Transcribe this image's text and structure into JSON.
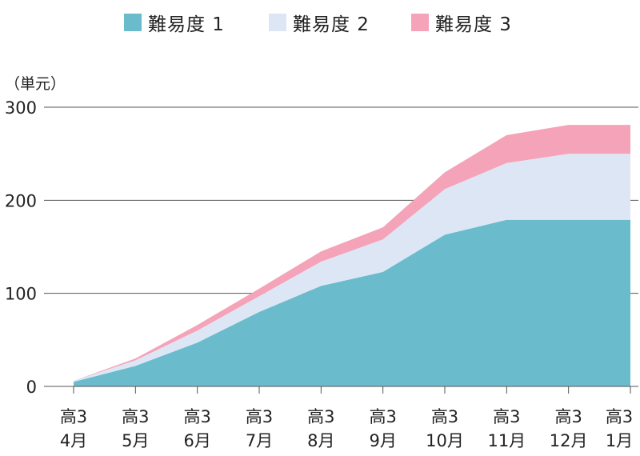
{
  "chart_data": {
    "type": "area",
    "stacked": true,
    "unit_label": "（単元）",
    "categories": [
      [
        "高3",
        "4月"
      ],
      [
        "高3",
        "5月"
      ],
      [
        "高3",
        "6月"
      ],
      [
        "高3",
        "7月"
      ],
      [
        "高3",
        "8月"
      ],
      [
        "高3",
        "9月"
      ],
      [
        "高3",
        "10月"
      ],
      [
        "高3",
        "11月"
      ],
      [
        "高3",
        "12月"
      ],
      [
        "高3",
        "1月"
      ]
    ],
    "series": [
      {
        "name": "難易度 1",
        "color": "#6abccd",
        "values": [
          5,
          22,
          47,
          80,
          108,
          123,
          163,
          179,
          179,
          179
        ]
      },
      {
        "name": "難易度 2",
        "color": "#dde6f4",
        "values": [
          1,
          6,
          13,
          17,
          26,
          35,
          49,
          61,
          71,
          71
        ]
      },
      {
        "name": "難易度 3",
        "color": "#f4a3b9",
        "values": [
          0,
          2,
          6,
          8,
          11,
          13,
          18,
          30,
          31,
          31
        ]
      }
    ],
    "ylim": [
      0,
      300
    ],
    "yticks": [
      "0",
      "100",
      "200",
      "300"
    ],
    "grid": true,
    "legend_position": "top-center"
  }
}
